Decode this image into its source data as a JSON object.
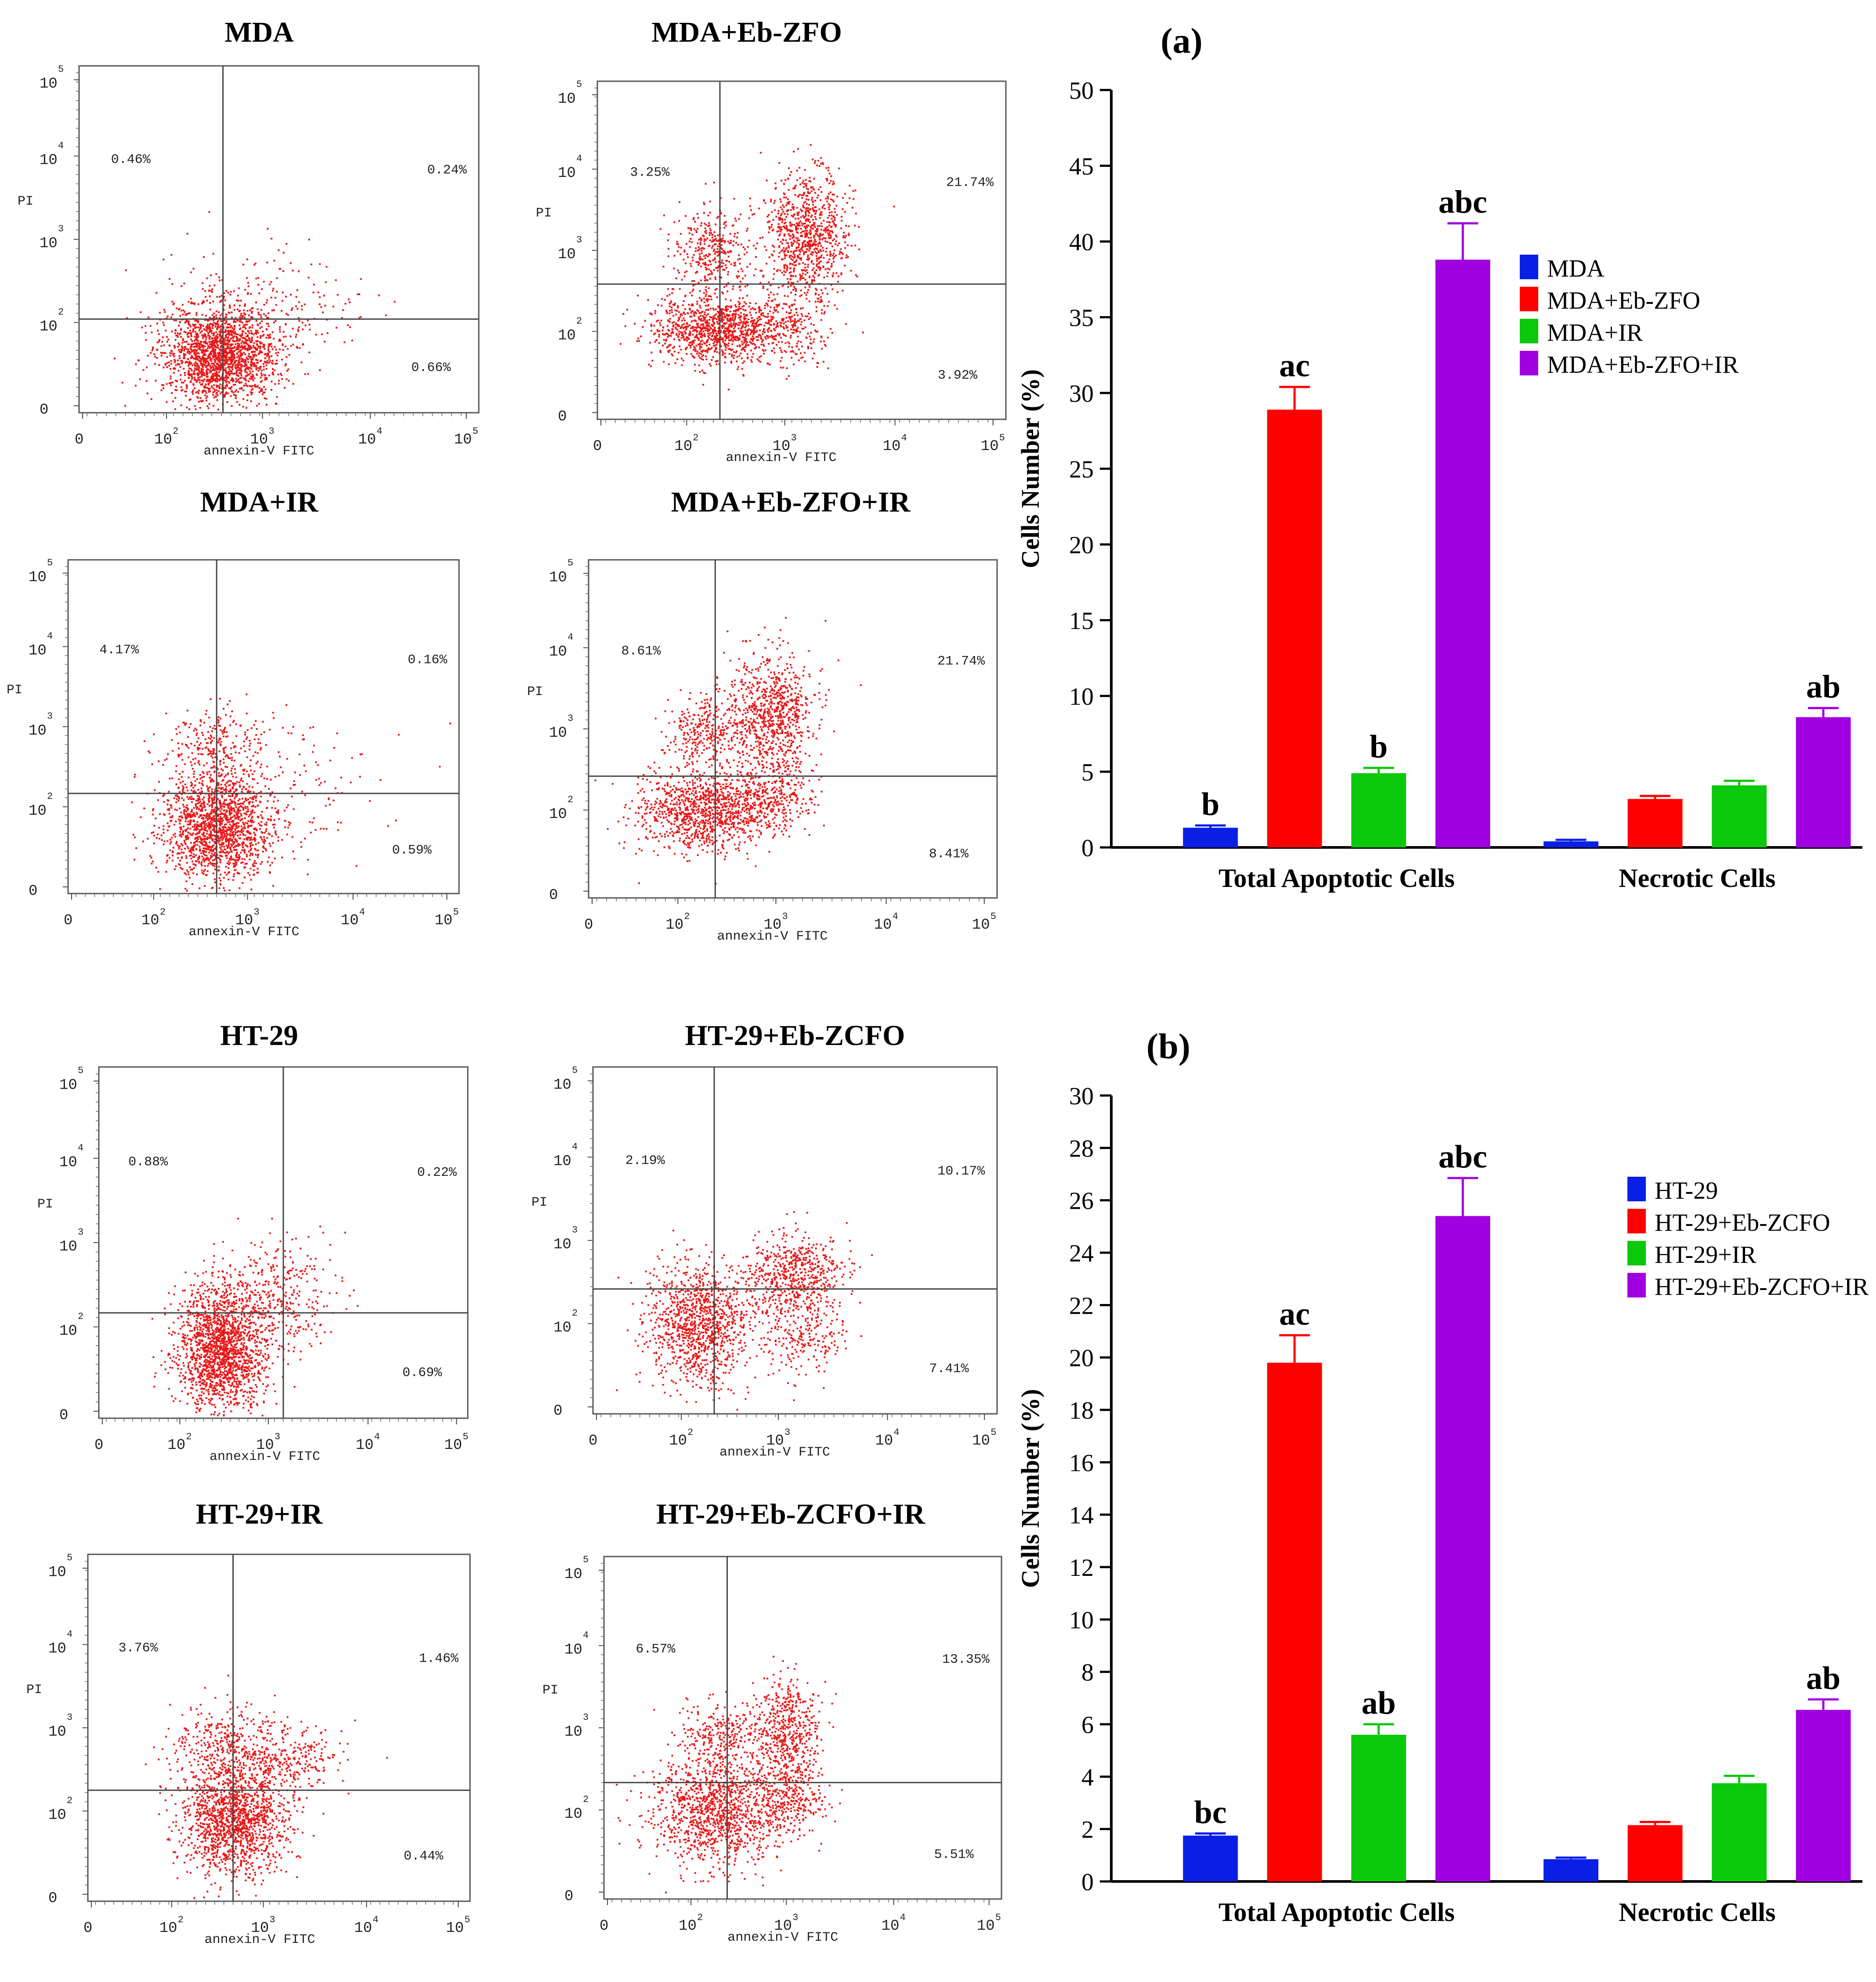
{
  "flow_panels": [
    {
      "title": "MDA",
      "q_ul": "0.46%",
      "q_ur": "0.24%",
      "q_lr": "0.66%",
      "xlabel": "annexin-V FITC",
      "ylabel": "PI",
      "xticks": [
        "0",
        "10",
        "10",
        "10",
        "10"
      ],
      "xexp": [
        "",
        "2",
        "3",
        "4",
        "5"
      ],
      "yticks": [
        "0",
        "10",
        "10",
        "10",
        "10"
      ],
      "yexp": [
        "",
        "2",
        "3",
        "4",
        "5"
      ]
    },
    {
      "title": "MDA+Eb-ZFO",
      "q_ul": "3.25%",
      "q_ur": "21.74%",
      "q_lr": "3.92%",
      "xlabel": "annexin-V FITC",
      "ylabel": "PI",
      "xticks": [
        "0",
        "10",
        "10",
        "10",
        "10"
      ],
      "xexp": [
        "",
        "2",
        "3",
        "4",
        "5"
      ],
      "yticks": [
        "0",
        "10",
        "10",
        "10",
        "10"
      ],
      "yexp": [
        "",
        "2",
        "3",
        "4",
        "5"
      ]
    },
    {
      "title": "MDA+IR",
      "q_ul": "4.17%",
      "q_ur": "0.16%",
      "q_lr": "0.59%",
      "xlabel": "annexin-V FITC",
      "ylabel": "PI",
      "xticks": [
        "0",
        "10",
        "10",
        "10",
        "10"
      ],
      "xexp": [
        "",
        "2",
        "3",
        "4",
        "5"
      ],
      "yticks": [
        "0",
        "10",
        "10",
        "10",
        "10"
      ],
      "yexp": [
        "",
        "2",
        "3",
        "4",
        "5"
      ]
    },
    {
      "title": "MDA+Eb-ZFO+IR",
      "q_ul": "8.61%",
      "q_ur": "21.74%",
      "q_lr": "8.41%",
      "xlabel": "annexin-V FITC",
      "ylabel": "PI",
      "xticks": [
        "0",
        "10",
        "10",
        "10",
        "10"
      ],
      "xexp": [
        "",
        "2",
        "3",
        "4",
        "5"
      ],
      "yticks": [
        "0",
        "10",
        "10",
        "10",
        "10"
      ],
      "yexp": [
        "",
        "2",
        "3",
        "4",
        "5"
      ]
    },
    {
      "title": "HT-29",
      "q_ul": "0.88%",
      "q_ur": "0.22%",
      "q_lr": "0.69%",
      "xlabel": "annexin-V FITC",
      "ylabel": "PI",
      "xticks": [
        "0",
        "10",
        "10",
        "10",
        "10"
      ],
      "xexp": [
        "",
        "2",
        "3",
        "4",
        "5"
      ],
      "yticks": [
        "0",
        "10",
        "10",
        "10",
        "10"
      ],
      "yexp": [
        "",
        "2",
        "3",
        "4",
        "5"
      ]
    },
    {
      "title": "HT-29+Eb-ZCFO",
      "q_ul": "2.19%",
      "q_ur": "10.17%",
      "q_lr": "7.41%",
      "xlabel": "annexin-V FITC",
      "ylabel": "PI",
      "xticks": [
        "0",
        "10",
        "10",
        "10",
        "10"
      ],
      "xexp": [
        "",
        "2",
        "3",
        "4",
        "5"
      ],
      "yticks": [
        "0",
        "10",
        "10",
        "10",
        "10"
      ],
      "yexp": [
        "",
        "2",
        "3",
        "4",
        "5"
      ]
    },
    {
      "title": "HT-29+IR",
      "q_ul": "3.76%",
      "q_ur": "1.46%",
      "q_lr": "0.44%",
      "xlabel": "annexin-V FITC",
      "ylabel": "PI",
      "xticks": [
        "0",
        "10",
        "10",
        "10",
        "10"
      ],
      "xexp": [
        "",
        "2",
        "3",
        "4",
        "5"
      ],
      "yticks": [
        "0",
        "10",
        "10",
        "10",
        "10"
      ],
      "yexp": [
        "",
        "2",
        "3",
        "4",
        "5"
      ]
    },
    {
      "title": "HT-29+Eb-ZCFO+IR",
      "q_ul": "6.57%",
      "q_ur": "13.35%",
      "q_lr": "5.51%",
      "xlabel": "annexin-V FITC",
      "ylabel": "PI",
      "xticks": [
        "0",
        "10",
        "10",
        "10",
        "10"
      ],
      "xexp": [
        "",
        "2",
        "3",
        "4",
        "5"
      ],
      "yticks": [
        "0",
        "10",
        "10",
        "10",
        "10"
      ],
      "yexp": [
        "",
        "2",
        "3",
        "4",
        "5"
      ]
    }
  ],
  "colors": {
    "MDA_blue": "#0a1fe6",
    "red": "#ff0000",
    "green": "#0ac80a",
    "purple": "#a000e0",
    "dots": "#e81818"
  },
  "chart_data": [
    {
      "type": "bar",
      "panel_label": "(a)",
      "title": "",
      "xlabel": "",
      "ylabel": "Cells Number (%)",
      "ylim": [
        0,
        50
      ],
      "yticks": [
        "0",
        "5",
        "10",
        "15",
        "20",
        "25",
        "30",
        "35",
        "40",
        "45",
        "50"
      ],
      "categories": [
        "Total Apoptotic Cells",
        "Necrotic Cells"
      ],
      "series": [
        {
          "name": "MDA",
          "color": "#0a1fe6",
          "values": [
            1.3,
            0.4
          ],
          "errors": [
            0.15,
            0.1
          ],
          "letters": [
            "b",
            ""
          ]
        },
        {
          "name": "MDA+Eb-ZFO",
          "color": "#ff0000",
          "values": [
            28.9,
            3.2
          ],
          "errors": [
            1.5,
            0.2
          ],
          "letters": [
            "ac",
            ""
          ]
        },
        {
          "name": "MDA+IR",
          "color": "#0ac80a",
          "values": [
            4.9,
            4.1
          ],
          "errors": [
            0.35,
            0.3
          ],
          "letters": [
            "b",
            ""
          ]
        },
        {
          "name": "MDA+Eb-ZFO+IR",
          "color": "#a000e0",
          "values": [
            38.8,
            8.6
          ],
          "errors": [
            2.4,
            0.6
          ],
          "letters": [
            "abc",
            "ab"
          ]
        }
      ],
      "legend": "upper-right"
    },
    {
      "type": "bar",
      "panel_label": "(b)",
      "title": "",
      "xlabel": "",
      "ylabel": "Cells Number (%)",
      "ylim": [
        0,
        30
      ],
      "yticks": [
        "0",
        "2",
        "4",
        "6",
        "8",
        "10",
        "12",
        "14",
        "16",
        "18",
        "20",
        "22",
        "24",
        "26",
        "28",
        "30"
      ],
      "categories": [
        "Total Apoptotic Cells",
        "Necrotic Cells"
      ],
      "series": [
        {
          "name": "HT-29",
          "color": "#0a1fe6",
          "values": [
            1.75,
            0.85
          ],
          "errors": [
            0.08,
            0.06
          ],
          "letters": [
            "bc",
            ""
          ]
        },
        {
          "name": "HT-29+Eb-ZCFO",
          "color": "#ff0000",
          "values": [
            19.8,
            2.15
          ],
          "errors": [
            1.05,
            0.12
          ],
          "letters": [
            "ac",
            ""
          ]
        },
        {
          "name": "HT-29+IR",
          "color": "#0ac80a",
          "values": [
            5.6,
            3.75
          ],
          "errors": [
            0.4,
            0.28
          ],
          "letters": [
            "ab",
            ""
          ]
        },
        {
          "name": "HT-29+Eb-ZCFO+IR",
          "color": "#a000e0",
          "values": [
            25.4,
            6.55
          ],
          "errors": [
            1.45,
            0.4
          ],
          "letters": [
            "abc",
            "ab"
          ]
        }
      ],
      "legend": "upper-right"
    }
  ]
}
